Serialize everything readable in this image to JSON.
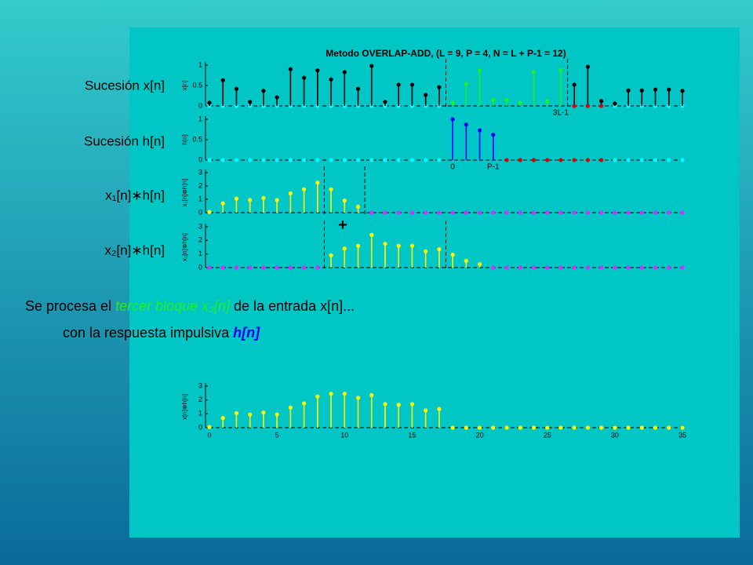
{
  "slide": {
    "row_labels": [
      "Sucesión x[n]",
      "Sucesión h[n]",
      "x₁[n]∗h[n]",
      "x₂[n]∗h[n]"
    ],
    "plus_sign": "+",
    "line1": [
      "Se procesa el ",
      "tercer bloque x₂[n]",
      " de la entrada x[n]..."
    ],
    "line2": [
      "con la respuesta impulsiva ",
      "h[n]"
    ]
  },
  "chart_data": [
    {
      "type": "stem",
      "title": "Metodo OVERLAP-ADD, (L = 9, P = 4, N = L + P-1 = 12)",
      "ylabel": "x[n]",
      "x": [
        0,
        1,
        2,
        3,
        4,
        5,
        6,
        7,
        8,
        9,
        10,
        11,
        12,
        13,
        14,
        15,
        16,
        17,
        18,
        19,
        20,
        21,
        22,
        23,
        24,
        25,
        26,
        27,
        28,
        29,
        30,
        31,
        32,
        33,
        34,
        35
      ],
      "xlim": [
        0,
        35
      ],
      "ylim": [
        0,
        1
      ],
      "yticks": [
        0,
        0.5,
        1
      ],
      "vlines": [
        17.5,
        26.5
      ],
      "annotations": [
        {
          "text": "3L-1",
          "x": 26
        }
      ],
      "series": [
        {
          "color": "#00ffff",
          "values": [
            0,
            0,
            0,
            0,
            0,
            0,
            0,
            0,
            0,
            0,
            0,
            0,
            0,
            0,
            0,
            0,
            0,
            0,
            null,
            null,
            null,
            null,
            null,
            null,
            null,
            null,
            null,
            null,
            null,
            null,
            0,
            0,
            0,
            0,
            0,
            0
          ]
        },
        {
          "color": "#000000",
          "values": [
            0.08,
            0.63,
            0.42,
            0.1,
            0.37,
            0.21,
            0.9,
            0.69,
            0.87,
            0.65,
            0.83,
            0.42,
            0.98,
            0.1,
            0.52,
            0.52,
            0.27,
            0.46,
            null,
            null,
            null,
            null,
            null,
            null,
            null,
            null,
            null,
            0.52,
            0.96,
            0.12,
            0.06,
            0.38,
            0.38,
            0.4,
            0.4,
            0.37
          ]
        },
        {
          "color": "#22ee22",
          "values": [
            null,
            null,
            null,
            null,
            null,
            null,
            null,
            null,
            null,
            null,
            null,
            null,
            null,
            null,
            null,
            null,
            null,
            null,
            0.08,
            0.54,
            0.87,
            0.15,
            0.15,
            0.08,
            0.83,
            0.12,
            0.88,
            null,
            null,
            null,
            null,
            null,
            null,
            null,
            null,
            null
          ]
        },
        {
          "color": "#dd0000",
          "values": [
            null,
            null,
            null,
            null,
            null,
            null,
            null,
            null,
            null,
            null,
            null,
            null,
            null,
            null,
            null,
            null,
            null,
            null,
            null,
            null,
            null,
            null,
            null,
            null,
            null,
            null,
            null,
            0,
            0,
            0,
            null,
            null,
            null,
            null,
            null,
            null
          ]
        }
      ]
    },
    {
      "type": "stem",
      "ylabel": "h[n]",
      "x": [
        0,
        1,
        2,
        3,
        4,
        5,
        6,
        7,
        8,
        9,
        10,
        11,
        12,
        13,
        14,
        15,
        16,
        17,
        18,
        19,
        20,
        21,
        22,
        23,
        24,
        25,
        26,
        27,
        28,
        29,
        30,
        31,
        32,
        33,
        34,
        35
      ],
      "xlim": [
        0,
        35
      ],
      "ylim": [
        0,
        1
      ],
      "yticks": [
        0,
        0.5,
        1
      ],
      "annotations": [
        {
          "text": "0",
          "x": 18
        },
        {
          "text": "P-1",
          "x": 21
        }
      ],
      "series": [
        {
          "color": "#00ffff",
          "values": [
            0,
            0,
            0,
            0,
            0,
            0,
            0,
            0,
            0,
            0,
            0,
            0,
            0,
            0,
            0,
            0,
            0,
            0,
            null,
            null,
            null,
            null,
            null,
            null,
            null,
            null,
            null,
            null,
            null,
            null,
            0,
            0,
            0,
            0,
            0,
            0
          ]
        },
        {
          "color": "#0000ff",
          "values": [
            null,
            null,
            null,
            null,
            null,
            null,
            null,
            null,
            null,
            null,
            null,
            null,
            null,
            null,
            null,
            null,
            null,
            null,
            1,
            0.87,
            0.73,
            0.62,
            null,
            null,
            null,
            null,
            null,
            null,
            null,
            null,
            null,
            null,
            null,
            null,
            null,
            null
          ]
        },
        {
          "color": "#dd0000",
          "values": [
            null,
            null,
            null,
            null,
            null,
            null,
            null,
            null,
            null,
            null,
            null,
            null,
            null,
            null,
            null,
            null,
            null,
            null,
            null,
            null,
            null,
            null,
            0,
            0,
            0,
            0,
            0,
            0,
            0,
            0,
            null,
            null,
            null,
            null,
            null,
            null
          ]
        }
      ]
    },
    {
      "type": "stem",
      "ylabel": "x₁[n]⊗h[n]",
      "x": [
        0,
        1,
        2,
        3,
        4,
        5,
        6,
        7,
        8,
        9,
        10,
        11,
        12,
        13,
        14,
        15,
        16,
        17,
        18,
        19,
        20,
        21,
        22,
        23,
        24,
        25,
        26,
        27,
        28,
        29,
        30,
        31,
        32,
        33,
        34,
        35
      ],
      "xlim": [
        0,
        35
      ],
      "ylim": [
        0,
        3
      ],
      "yticks": [
        0,
        1,
        2,
        3
      ],
      "vlines": [
        8.5,
        11.5
      ],
      "series": [
        {
          "color": "#ffff00",
          "values": [
            0.05,
            0.7,
            1.05,
            0.95,
            1.1,
            0.95,
            1.45,
            1.75,
            2.25,
            1.75,
            0.9,
            0.45,
            null,
            null,
            null,
            null,
            null,
            null,
            null,
            null,
            null,
            null,
            null,
            null,
            null,
            null,
            null,
            null,
            null,
            null,
            null,
            null,
            null,
            null,
            null,
            null
          ]
        },
        {
          "color": "#cc33ff",
          "values": [
            null,
            null,
            null,
            null,
            null,
            null,
            null,
            null,
            null,
            null,
            null,
            null,
            0,
            0,
            0,
            0,
            0,
            0,
            0,
            0,
            0,
            0,
            0,
            0,
            0,
            0,
            0,
            0,
            0,
            0,
            0,
            0,
            0,
            0,
            0,
            0
          ]
        }
      ]
    },
    {
      "type": "stem",
      "ylabel": "x₂[n]⊗h[n]",
      "x": [
        0,
        1,
        2,
        3,
        4,
        5,
        6,
        7,
        8,
        9,
        10,
        11,
        12,
        13,
        14,
        15,
        16,
        17,
        18,
        19,
        20,
        21,
        22,
        23,
        24,
        25,
        26,
        27,
        28,
        29,
        30,
        31,
        32,
        33,
        34,
        35
      ],
      "xlim": [
        0,
        35
      ],
      "ylim": [
        0,
        3
      ],
      "yticks": [
        0,
        1,
        2,
        3
      ],
      "vlines": [
        8.5,
        17.5
      ],
      "series": [
        {
          "color": "#cc33ff",
          "values": [
            0,
            0,
            0,
            0,
            0,
            0,
            0,
            0,
            0,
            null,
            null,
            null,
            null,
            null,
            null,
            null,
            null,
            null,
            null,
            null,
            null,
            0,
            0,
            0,
            0,
            0,
            0,
            0,
            0,
            0,
            0,
            0,
            0,
            0,
            0,
            0
          ]
        },
        {
          "color": "#ffff00",
          "values": [
            null,
            null,
            null,
            null,
            null,
            null,
            null,
            null,
            null,
            0.9,
            1.4,
            1.6,
            2.4,
            1.75,
            1.6,
            1.6,
            1.2,
            1.35,
            0.95,
            0.5,
            0.25,
            null,
            null,
            null,
            null,
            null,
            null,
            null,
            null,
            null,
            null,
            null,
            null,
            null,
            null,
            null
          ]
        }
      ]
    },
    {
      "type": "stem",
      "ylabel": "x[n]⊗h[n]",
      "x": [
        0,
        1,
        2,
        3,
        4,
        5,
        6,
        7,
        8,
        9,
        10,
        11,
        12,
        13,
        14,
        15,
        16,
        17,
        18,
        19,
        20,
        21,
        22,
        23,
        24,
        25,
        26,
        27,
        28,
        29,
        30,
        31,
        32,
        33,
        34,
        35
      ],
      "xlim": [
        0,
        35
      ],
      "ylim": [
        0,
        3
      ],
      "yticks": [
        0,
        1,
        2,
        3
      ],
      "xticks": [
        0,
        5,
        10,
        15,
        20,
        25,
        30,
        35
      ],
      "series": [
        {
          "color": "#ffff00",
          "values": [
            0.05,
            0.7,
            1.05,
            0.95,
            1.1,
            0.95,
            1.45,
            1.75,
            2.25,
            2.45,
            2.45,
            2.15,
            2.35,
            1.7,
            1.65,
            1.7,
            1.25,
            1.35,
            0,
            0,
            0,
            0,
            0,
            0,
            0,
            0,
            0,
            0,
            0,
            0,
            0,
            0,
            0,
            0,
            0,
            0
          ]
        }
      ]
    }
  ]
}
